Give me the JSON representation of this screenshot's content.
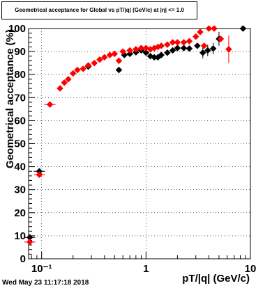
{
  "chart_data": {
    "type": "scatter",
    "title": "Geometrical acceptance for Global vs pT/|q| (GeV/c) at |η| <= 1.0",
    "xlabel": "pT/|q| (GeV/c)",
    "ylabel": "Geometrical acceptance (%)",
    "x_scale": "log",
    "xlim": [
      0.075,
      10
    ],
    "ylim": [
      0,
      100
    ],
    "x_tick_labels": [
      "10⁻¹",
      "1",
      "10"
    ],
    "y_tick_labels": [
      "0",
      "10",
      "20",
      "30",
      "40",
      "50",
      "60",
      "70",
      "80",
      "90",
      "100"
    ],
    "grid": true,
    "timestamp": "Wed May 23 11:17:18 2018",
    "series": [
      {
        "color": "#000000",
        "marker": "diamond",
        "points": [
          {
            "x": 0.077,
            "y": 9.3,
            "yerr": 0
          },
          {
            "x": 0.095,
            "y": 38,
            "yerr": 0
          },
          {
            "x": 0.28,
            "y": 83.5,
            "yerr": 0
          },
          {
            "x": 0.55,
            "y": 82,
            "yerr": 0
          },
          {
            "x": 0.62,
            "y": 88.5,
            "yerr": 0
          },
          {
            "x": 0.7,
            "y": 89,
            "yerr": 0
          },
          {
            "x": 0.8,
            "y": 89.7,
            "yerr": 0
          },
          {
            "x": 0.9,
            "y": 90.5,
            "yerr": 0
          },
          {
            "x": 1.0,
            "y": 89.5,
            "yerr": 0
          },
          {
            "x": 1.1,
            "y": 88,
            "yerr": 0
          },
          {
            "x": 1.2,
            "y": 87.5,
            "yerr": 0
          },
          {
            "x": 1.3,
            "y": 87.5,
            "yerr": 0
          },
          {
            "x": 1.4,
            "y": 88.5,
            "yerr": 0
          },
          {
            "x": 1.6,
            "y": 89.5,
            "yerr": 0
          },
          {
            "x": 1.8,
            "y": 90.5,
            "yerr": 0
          },
          {
            "x": 2.0,
            "y": 91.5,
            "yerr": 0
          },
          {
            "x": 2.3,
            "y": 91.5,
            "yerr": 0
          },
          {
            "x": 2.6,
            "y": 91.3,
            "yerr": 0
          },
          {
            "x": 3.1,
            "y": 92.5,
            "yerr": 0
          },
          {
            "x": 3.5,
            "y": 89.5,
            "yerr": 2.5
          },
          {
            "x": 3.9,
            "y": 90.5,
            "yerr": 2.5
          },
          {
            "x": 4.4,
            "y": 91.3,
            "yerr": 2.5
          },
          {
            "x": 5.0,
            "y": 95.5,
            "yerr": 3
          },
          {
            "x": 8.5,
            "y": 100,
            "yerr": 0
          }
        ]
      },
      {
        "color": "#ff0000",
        "marker": "diamond",
        "points": [
          {
            "x": 0.077,
            "y": 7.3,
            "yerr": 0
          },
          {
            "x": 0.095,
            "y": 36.5,
            "yerr": 0
          },
          {
            "x": 0.12,
            "y": 67,
            "yerr": 0
          },
          {
            "x": 0.15,
            "y": 74,
            "yerr": 0
          },
          {
            "x": 0.165,
            "y": 76.5,
            "yerr": 0
          },
          {
            "x": 0.18,
            "y": 78,
            "yerr": 0
          },
          {
            "x": 0.2,
            "y": 80.5,
            "yerr": 0
          },
          {
            "x": 0.22,
            "y": 82,
            "yerr": 0
          },
          {
            "x": 0.25,
            "y": 82.5,
            "yerr": 0
          },
          {
            "x": 0.28,
            "y": 84,
            "yerr": 0
          },
          {
            "x": 0.32,
            "y": 85,
            "yerr": 0
          },
          {
            "x": 0.36,
            "y": 86.5,
            "yerr": 0
          },
          {
            "x": 0.4,
            "y": 87.5,
            "yerr": 0
          },
          {
            "x": 0.45,
            "y": 88.5,
            "yerr": 0
          },
          {
            "x": 0.5,
            "y": 89,
            "yerr": 0
          },
          {
            "x": 0.55,
            "y": 86,
            "yerr": 0
          },
          {
            "x": 0.6,
            "y": 90,
            "yerr": 0
          },
          {
            "x": 0.7,
            "y": 90.5,
            "yerr": 0
          },
          {
            "x": 0.8,
            "y": 91,
            "yerr": 0
          },
          {
            "x": 0.9,
            "y": 91.5,
            "yerr": 0
          },
          {
            "x": 1.0,
            "y": 91.5,
            "yerr": 0
          },
          {
            "x": 1.1,
            "y": 91,
            "yerr": 0
          },
          {
            "x": 1.2,
            "y": 91.5,
            "yerr": 0
          },
          {
            "x": 1.3,
            "y": 92,
            "yerr": 0
          },
          {
            "x": 1.4,
            "y": 92.5,
            "yerr": 0
          },
          {
            "x": 1.6,
            "y": 93,
            "yerr": 0
          },
          {
            "x": 1.8,
            "y": 94,
            "yerr": 0
          },
          {
            "x": 2.0,
            "y": 94,
            "yerr": 0
          },
          {
            "x": 2.3,
            "y": 94,
            "yerr": 0
          },
          {
            "x": 2.6,
            "y": 94.5,
            "yerr": 0
          },
          {
            "x": 3.0,
            "y": 96.5,
            "yerr": 0
          },
          {
            "x": 3.3,
            "y": 98.5,
            "yerr": 0
          },
          {
            "x": 3.6,
            "y": 92.5,
            "yerr": 0
          },
          {
            "x": 4.0,
            "y": 100,
            "yerr": 0
          },
          {
            "x": 4.5,
            "y": 100,
            "yerr": 0
          },
          {
            "x": 5.2,
            "y": 95.5,
            "yerr": 0
          },
          {
            "x": 6.2,
            "y": 91,
            "yerr": 6
          }
        ]
      }
    ]
  }
}
